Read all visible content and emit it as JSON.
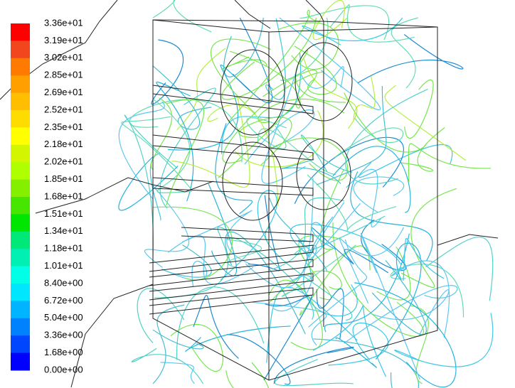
{
  "colorbar": {
    "labels": [
      "3.36e+01",
      "3.19e+01",
      "3.02e+01",
      "2.85e+01",
      "2.69e+01",
      "2.52e+01",
      "2.35e+01",
      "2.18e+01",
      "2.02e+01",
      "1.85e+01",
      "1.68e+01",
      "1.51e+01",
      "1.34e+01",
      "1.18e+01",
      "1.01e+01",
      "8.40e+00",
      "6.72e+00",
      "5.04e+00",
      "3.36e+00",
      "1.68e+00",
      "0.00e+00"
    ],
    "colors": [
      "#ff0000",
      "#f2461e",
      "#ff7a00",
      "#ffa000",
      "#ffbf00",
      "#ffdc00",
      "#ffff00",
      "#d4f500",
      "#b0ff00",
      "#84f000",
      "#46e600",
      "#00e600",
      "#00e878",
      "#00f0b4",
      "#00ffe6",
      "#00e6ff",
      "#00b4ff",
      "#0082ff",
      "#0046ff",
      "#0000ff"
    ]
  }
}
